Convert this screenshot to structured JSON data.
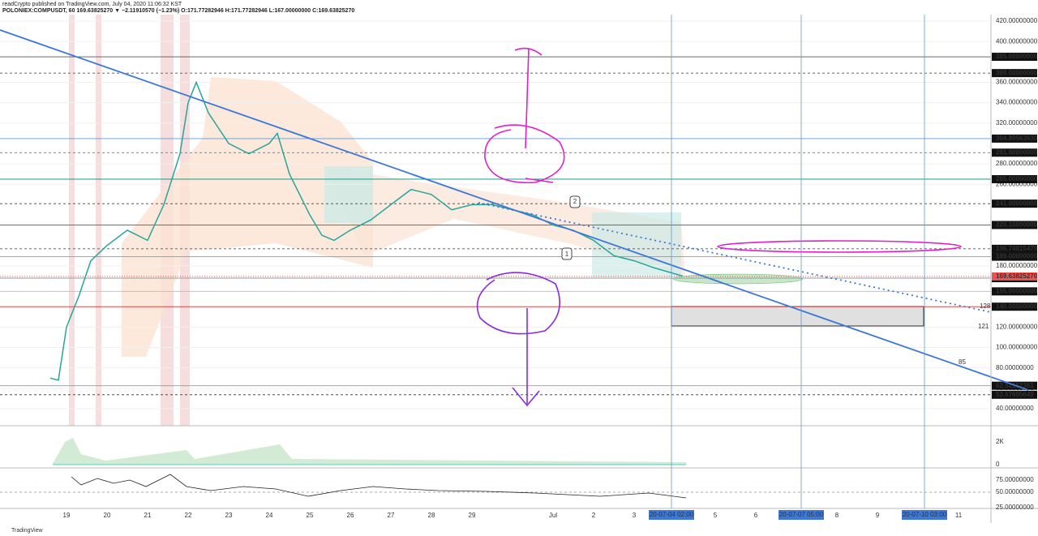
{
  "header": {
    "publisher": "readCrypto published on TradingView.com, July 04, 2020 11:06:32 KST",
    "symbol": "POLONIEX:COMPUSDT, 60  169.63825270 ▼ −2.11910570 (−1.23%) O:171.77282946 H:171.77282946 L:167.00000000 C:169.63825270"
  },
  "footer": "TradingView",
  "chart_data": {
    "type": "line",
    "color": "#26a69a",
    "xlim": [
      -1.64,
      22.8
    ],
    "x": [
      -0.4,
      -0.2,
      0,
      0.3,
      0.6,
      1,
      1.5,
      2,
      2.4,
      2.8,
      3,
      3.2,
      3.5,
      4,
      4.5,
      5,
      5.2,
      5.5,
      6,
      6.3,
      6.6,
      7,
      7.5,
      8,
      8.5,
      9,
      9.5,
      10,
      10.5,
      11,
      11.5,
      12,
      12.5,
      13,
      13.5,
      14,
      14.5,
      15.2
    ],
    "values": [
      70,
      68,
      120,
      150,
      185,
      200,
      215,
      205,
      240,
      290,
      340,
      360,
      330,
      300,
      290,
      300,
      310,
      270,
      230,
      210,
      205,
      215,
      225,
      240,
      255,
      250,
      235,
      240,
      240,
      235,
      230,
      220,
      215,
      205,
      190,
      185,
      178,
      170
    ],
    "categories": [
      "19",
      "20",
      "21",
      "22",
      "23",
      "24",
      "25",
      "26",
      "27",
      "28",
      "29",
      null,
      "Jul",
      "2",
      "3",
      null,
      "5",
      "6",
      null,
      "8",
      "9",
      null,
      "11"
    ],
    "ylim": [
      40,
      420
    ],
    "yticks": [
      {
        "value": 420,
        "label": "420.00000000"
      },
      {
        "value": 400,
        "label": "400.00000000"
      },
      {
        "value": 360,
        "label": "360.00000000"
      },
      {
        "value": 340,
        "label": "340.00000000"
      },
      {
        "value": 320,
        "label": "320.00000000"
      },
      {
        "value": 280,
        "label": "280.00000000"
      },
      {
        "value": 260,
        "label": "260.00000000"
      },
      {
        "value": 180,
        "label": "180.00000000"
      },
      {
        "value": 120,
        "label": "120.00000000"
      },
      {
        "value": 100,
        "label": "100.00000000"
      },
      {
        "value": 80,
        "label": "80.00000000"
      },
      {
        "value": 60,
        "label": "60.00000000"
      },
      {
        "value": 40,
        "label": "40.00000000"
      }
    ],
    "price_levels": [
      {
        "value": 385,
        "label": "385.00000000",
        "color": "#555555",
        "dashed": false
      },
      {
        "value": 369,
        "label": "369.00000000",
        "color": "#555555",
        "dashed": true
      },
      {
        "value": 304.8056363,
        "label": "304.80563630",
        "color": "#5b9bd5",
        "dashed": false
      },
      {
        "value": 291,
        "label": "291.00000000",
        "color": "#777777",
        "dashed": true
      },
      {
        "value": 265,
        "label": "265.00000000",
        "color": "#00897b",
        "dashed": false
      },
      {
        "value": 241,
        "label": "241.00000000",
        "color": "#444444",
        "dashed": true
      },
      {
        "value": 220.1,
        "label": "220.10000000",
        "color": "#2e7d32",
        "dashed": false
      },
      {
        "value": 196.74815479,
        "label": "196.74815479",
        "color": "#555555",
        "dashed": true
      },
      {
        "value": 189,
        "label": "189.00000000",
        "color": "#999999",
        "dashed": false
      },
      {
        "value": 168,
        "label": "168.00000000",
        "color": "#999999",
        "dashed": false
      },
      {
        "value": 155,
        "label": "155.00000000",
        "color": "#bbbbbb",
        "dashed": false
      },
      {
        "value": 140,
        "label": "140.00000000",
        "color": "#d32f2f",
        "dashed": false
      },
      {
        "value": 62.52152361,
        "label": "62.52152361",
        "color": "#999999",
        "dashed": false
      },
      {
        "value": 53.67605649,
        "label": "53.67605649",
        "color": "#333333",
        "dashed": true
      }
    ],
    "last_price": {
      "value": 169.6382527,
      "label": "169.63825270",
      "color": "#ef5350"
    },
    "time_markers": [
      {
        "x": 14.92,
        "label": "20-07-04  02:00"
      },
      {
        "x": 18.12,
        "label": "20-07-07  05:00"
      },
      {
        "x": 21.16,
        "label": "20-07-10  03:00"
      }
    ],
    "annotations": [
      "128",
      "121",
      "85",
      "1",
      "2"
    ],
    "volume_axis": [
      "2K",
      "0"
    ],
    "oscillator_axis": [
      "75.00000000",
      "50.00000000",
      "25.00000000"
    ]
  }
}
